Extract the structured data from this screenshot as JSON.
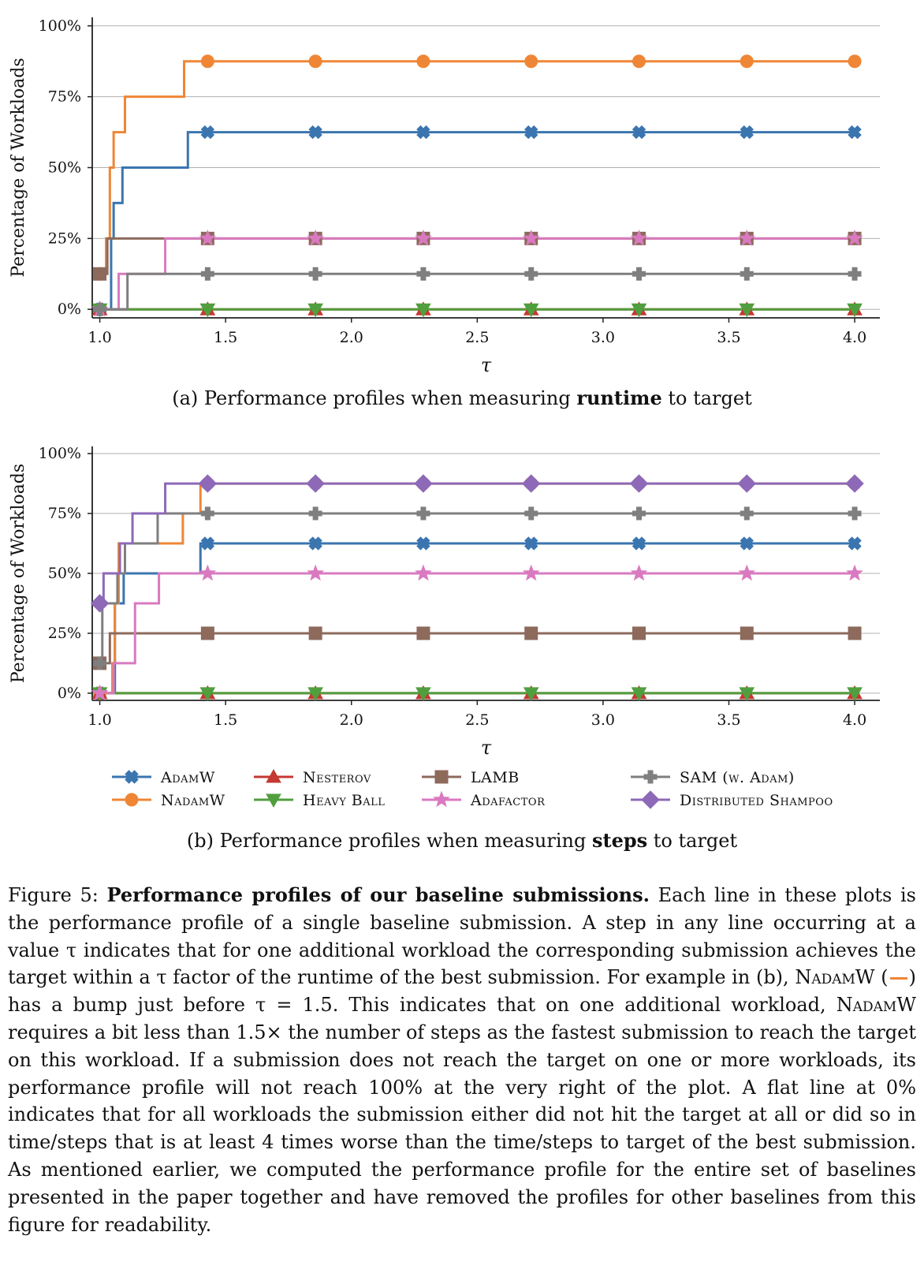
{
  "colors": {
    "AdamW": "#3b75af",
    "NadamW": "#ef8636",
    "Nesterov": "#c53932",
    "Heavy Ball": "#519e3e",
    "LAMB": "#8d6a5c",
    "Adafactor": "#d97ac0",
    "SAM": "#7f7f7f",
    "Distributed Shampoo": "#8d69b8"
  },
  "chart_data": [
    {
      "type": "line",
      "id": "a",
      "xlabel": "τ",
      "ylabel": "Percentage of Workloads",
      "xlim": [
        0.97,
        4.1
      ],
      "ylim": [
        -0.03,
        1.03
      ],
      "xticks": [
        "1.0",
        "1.5",
        "2.0",
        "2.5",
        "3.0",
        "3.5",
        "4.0"
      ],
      "yticks": [
        "0%",
        "25%",
        "50%",
        "75%",
        "100%"
      ],
      "grid": "horizontal",
      "marker_x": [
        1.0,
        1.4286,
        1.8571,
        2.2857,
        2.7143,
        3.1429,
        3.5714,
        4.0
      ],
      "series": [
        {
          "name": "AdamW",
          "marker": "X",
          "steps": [
            [
              1.0,
              0
            ],
            [
              1.045,
              0.25
            ],
            [
              1.055,
              0.375
            ],
            [
              1.09,
              0.5
            ],
            [
              1.35,
              0.625
            ]
          ]
        },
        {
          "name": "NadamW",
          "marker": "o",
          "steps": [
            [
              1.0,
              0.125
            ],
            [
              1.025,
              0.25
            ],
            [
              1.04,
              0.5
            ],
            [
              1.055,
              0.625
            ],
            [
              1.1,
              0.75
            ],
            [
              1.335,
              0.875
            ]
          ]
        },
        {
          "name": "Nesterov",
          "marker": "^",
          "steps": [
            [
              1.0,
              0
            ]
          ]
        },
        {
          "name": "Heavy Ball",
          "marker": "v",
          "steps": [
            [
              1.0,
              0
            ]
          ]
        },
        {
          "name": "LAMB",
          "marker": "s",
          "steps": [
            [
              1.0,
              0.125
            ],
            [
              1.03,
              0.25
            ]
          ]
        },
        {
          "name": "Adafactor",
          "marker": "*",
          "steps": [
            [
              1.0,
              0
            ],
            [
              1.075,
              0.125
            ],
            [
              1.26,
              0.25
            ]
          ]
        },
        {
          "name": "SAM",
          "marker": "P",
          "steps": [
            [
              1.0,
              0
            ],
            [
              1.11,
              0.125
            ]
          ]
        }
      ],
      "caption_prefix": "(a) Performance profiles when measuring ",
      "caption_bold": "runtime",
      "caption_suffix": " to target"
    },
    {
      "type": "line",
      "id": "b",
      "xlabel": "τ",
      "ylabel": "Percentage of Workloads",
      "xlim": [
        0.97,
        4.1
      ],
      "ylim": [
        -0.03,
        1.03
      ],
      "xticks": [
        "1.0",
        "1.5",
        "2.0",
        "2.5",
        "3.0",
        "3.5",
        "4.0"
      ],
      "yticks": [
        "0%",
        "25%",
        "50%",
        "75%",
        "100%"
      ],
      "grid": "horizontal",
      "marker_x": [
        1.0,
        1.4286,
        1.8571,
        2.2857,
        2.7143,
        3.1429,
        3.5714,
        4.0
      ],
      "series": [
        {
          "name": "AdamW",
          "marker": "X",
          "steps": [
            [
              1.0,
              0
            ],
            [
              1.06,
              0.375
            ],
            [
              1.095,
              0.5
            ],
            [
              1.4,
              0.625
            ]
          ]
        },
        {
          "name": "NadamW",
          "marker": "o",
          "steps": [
            [
              1.0,
              0
            ],
            [
              1.05,
              0.125
            ],
            [
              1.06,
              0.375
            ],
            [
              1.075,
              0.625
            ],
            [
              1.33,
              0.75
            ],
            [
              1.4,
              0.875
            ]
          ]
        },
        {
          "name": "Nesterov",
          "marker": "^",
          "steps": [
            [
              1.0,
              0
            ]
          ]
        },
        {
          "name": "Heavy Ball",
          "marker": "v",
          "steps": [
            [
              1.0,
              0
            ]
          ]
        },
        {
          "name": "LAMB",
          "marker": "s",
          "steps": [
            [
              1.0,
              0.125
            ],
            [
              1.04,
              0.25
            ]
          ]
        },
        {
          "name": "Adafactor",
          "marker": "*",
          "steps": [
            [
              1.0,
              0
            ],
            [
              1.055,
              0.125
            ],
            [
              1.14,
              0.375
            ],
            [
              1.235,
              0.5
            ]
          ]
        },
        {
          "name": "SAM",
          "marker": "P",
          "steps": [
            [
              1.0,
              0.125
            ],
            [
              1.01,
              0.375
            ],
            [
              1.07,
              0.5
            ],
            [
              1.1,
              0.625
            ],
            [
              1.23,
              0.75
            ]
          ]
        },
        {
          "name": "Distributed Shampoo",
          "marker": "D",
          "steps": [
            [
              1.0,
              0.375
            ],
            [
              1.015,
              0.5
            ],
            [
              1.08,
              0.625
            ],
            [
              1.13,
              0.75
            ],
            [
              1.26,
              0.875
            ]
          ]
        }
      ],
      "caption_prefix": "(b) Performance profiles when measuring ",
      "caption_bold": "steps",
      "caption_suffix": " to target"
    }
  ],
  "legend": [
    {
      "key": "AdamW",
      "label": "AdamW",
      "marker": "X"
    },
    {
      "key": "NadamW",
      "label": "NadamW",
      "marker": "o"
    },
    {
      "key": "Nesterov",
      "label": "Nesterov",
      "marker": "^"
    },
    {
      "key": "Heavy Ball",
      "label": "Heavy Ball",
      "marker": "v"
    },
    {
      "key": "LAMB",
      "label": "LAMB",
      "marker": "s"
    },
    {
      "key": "Adafactor",
      "label": "Adafactor",
      "marker": "*"
    },
    {
      "key": "SAM",
      "label": "SAM (w. Adam)",
      "marker": "P"
    },
    {
      "key": "Distributed Shampoo",
      "label": "Distributed Shampoo",
      "marker": "D"
    }
  ],
  "figure_caption": {
    "label": "Figure 5: ",
    "title": "Performance profiles of our baseline submissions.",
    "p1": " Each line in these plots is the performance profile of a single baseline submission. A step in any line occurring at a value τ indicates that for one additional workload the corresponding submission achieves the target within a τ factor of the runtime of the best submission. For example in (b), ",
    "nadamw": "NadamW",
    "paren_open": "(",
    "paren_close": ")",
    "p2": " has a bump just before τ = 1.5. This indicates that on one additional workload, ",
    "p3": " requires a bit less than 1.5× the number of steps as the fastest submission to reach the target on this workload. If a submission does not reach the target on one or more workloads, its performance profile will not reach 100% at the very right of the plot. A flat line at 0% indicates that for all workloads the submission either did not hit the target at all or did so in time/steps that is at least 4 times worse than the time/steps to target of the best submission. As mentioned earlier, we computed the performance profile for the entire set of baselines presented in the paper together and have removed the profiles for other baselines from this figure for readability."
  }
}
